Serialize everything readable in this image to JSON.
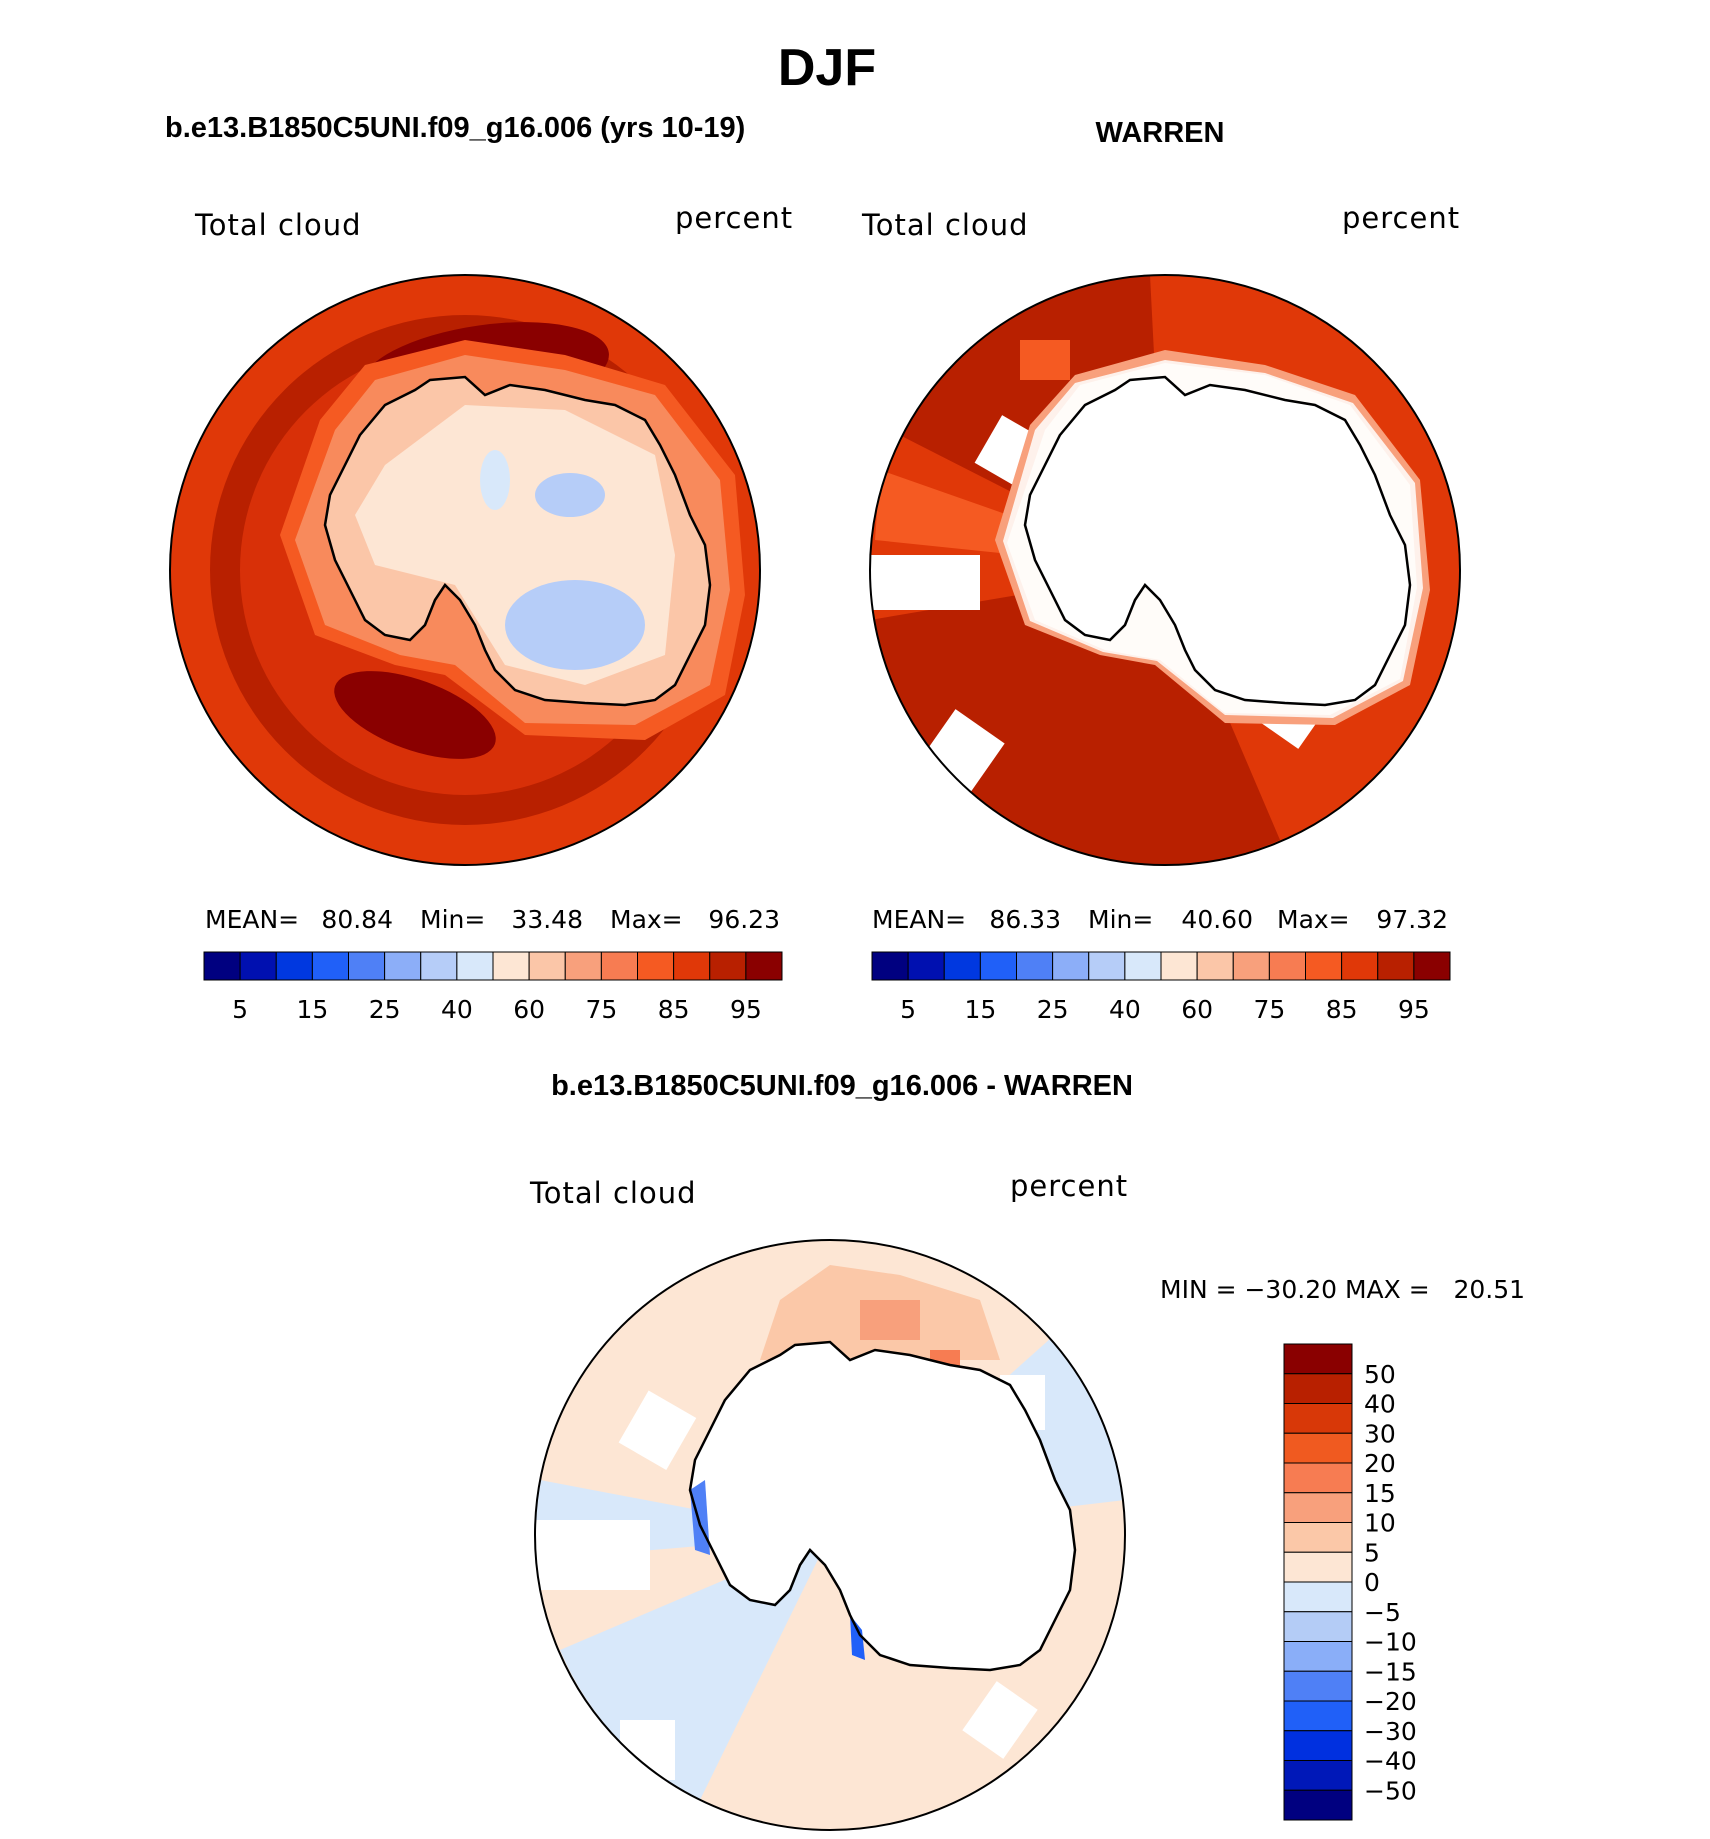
{
  "title": "DJF",
  "panels": {
    "model": {
      "header": "b.e13.B1850C5UNI.f09_g16.006 (yrs 10-19)",
      "variable": "Total cloud",
      "units": "percent",
      "mean_label": "MEAN=",
      "mean": "80.84",
      "min_label": "Min=",
      "min": "33.48",
      "max_label": "Max=",
      "max": "96.23"
    },
    "obs": {
      "header": "WARREN",
      "variable": "Total cloud",
      "units": "percent",
      "mean_label": "MEAN=",
      "mean": "86.33",
      "min_label": "Min=",
      "min": "40.60",
      "max_label": "Max=",
      "max": "97.32"
    },
    "diff": {
      "header": "b.e13.B1850C5UNI.f09_g16.006 - WARREN",
      "variable": "Total cloud",
      "units": "percent",
      "minmax_text": "MIN = −30.20 MAX =   20.51"
    }
  },
  "colors": {
    "abs_scale": [
      "#000080",
      "#0010b0",
      "#0038e0",
      "#2060f8",
      "#4f80f6",
      "#8caef8",
      "#b6cdf8",
      "#d8e8fa",
      "#fde6d4",
      "#fbc6a8",
      "#f8a07c",
      "#f77c52",
      "#f55a22",
      "#e03808",
      "#b82000",
      "#8a0000"
    ],
    "diff_scale": [
      "#000080",
      "#0018b8",
      "#0030e0",
      "#2060f8",
      "#4f80f6",
      "#8aaef8",
      "#b4ccf6",
      "#d8e8fa",
      "#fde6d4",
      "#fbc8a8",
      "#f8a07c",
      "#f77c52",
      "#f05a20",
      "#d83808",
      "#b82000",
      "#8a0000"
    ],
    "land_line": "#000000",
    "missing": "#ffffff"
  },
  "chart_data": [
    {
      "type": "heatmap",
      "projection": "south polar stereographic",
      "title": "b.e13.B1850C5UNI.f09_g16.006 (yrs 10-19)",
      "variable": "Total cloud",
      "units": "percent",
      "colorbar_ticks": [
        "5",
        "15",
        "25",
        "40",
        "60",
        "75",
        "85",
        "95"
      ],
      "levels": [
        5,
        10,
        15,
        20,
        25,
        30,
        40,
        50,
        60,
        65,
        75,
        80,
        85,
        90,
        95
      ],
      "stats": {
        "mean": 80.84,
        "min": 33.48,
        "max": 96.23
      }
    },
    {
      "type": "heatmap",
      "projection": "south polar stereographic",
      "title": "WARREN",
      "variable": "Total cloud",
      "units": "percent",
      "colorbar_ticks": [
        "5",
        "15",
        "25",
        "40",
        "60",
        "75",
        "85",
        "95"
      ],
      "levels": [
        5,
        10,
        15,
        20,
        25,
        30,
        40,
        50,
        60,
        65,
        75,
        80,
        85,
        90,
        95
      ],
      "stats": {
        "mean": 86.33,
        "min": 40.6,
        "max": 97.32
      }
    },
    {
      "type": "heatmap",
      "projection": "south polar stereographic",
      "title": "b.e13.B1850C5UNI.f09_g16.006 - WARREN",
      "variable": "Total cloud",
      "units": "percent",
      "colorbar_ticks": [
        "50",
        "40",
        "30",
        "20",
        "15",
        "10",
        "5",
        "0",
        "−5",
        "−10",
        "−15",
        "−20",
        "−30",
        "−40",
        "−50"
      ],
      "stats": {
        "min": -30.2,
        "max": 20.51
      }
    }
  ]
}
